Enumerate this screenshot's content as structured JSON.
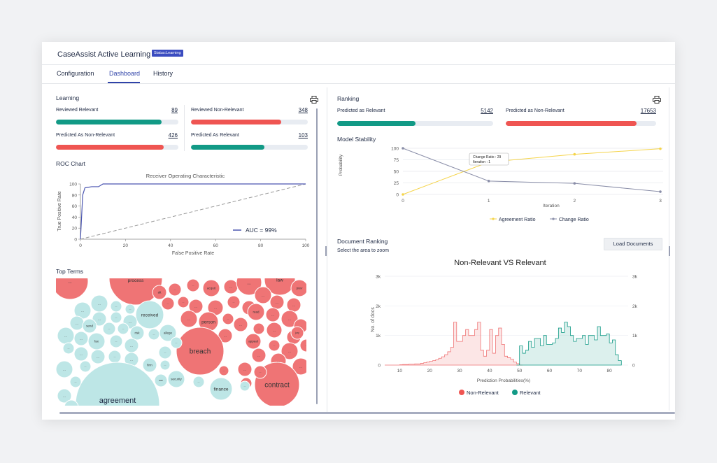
{
  "app": {
    "title": "CaseAssist Active Learning",
    "status_badge": "Status:Learning"
  },
  "tabs": [
    {
      "label": "Configuration"
    },
    {
      "label": "Dashboard"
    },
    {
      "label": "History"
    }
  ],
  "learning": {
    "title": "Learning",
    "reviewed_relevant": {
      "label": "Reviewed Relevant",
      "value": "89",
      "fill": 0.86
    },
    "reviewed_non_relevant": {
      "label": "Reviewed Non-Relevant",
      "value": "348",
      "fill": 0.77
    },
    "predicted_non_relevant": {
      "label": "Predicted As Non-Relevant",
      "value": "426",
      "fill": 0.88
    },
    "predicted_relevant": {
      "label": "Predicted As Relevant",
      "value": "103",
      "fill": 0.63
    }
  },
  "roc": {
    "section_title": "ROC Chart",
    "chart_title": "Receiver Operating Characteristic",
    "xlabel": "False Positive Rate",
    "ylabel": "True Positive Rate",
    "xticks": [
      "0",
      "20",
      "40",
      "60",
      "80",
      "100"
    ],
    "yticks": [
      "0",
      "20",
      "40",
      "60",
      "80",
      "100"
    ],
    "legend": "AUC = 99%"
  },
  "top_terms": {
    "title": "Top Terms",
    "labels": {
      "process": "process",
      "law": "law",
      "acquit": "acquit",
      "prev": "prev",
      "alt": "alt",
      "read": "read",
      "received": "received",
      "person": "person",
      "allege": "allege",
      "send": "send",
      "fax": "fax",
      "risk": "risk",
      "breach": "breach",
      "appeal": "appeal",
      "jury": "jury",
      "firm": "firm",
      "security": "security",
      "sue": "sue",
      "finance": "finance",
      "contract": "contract",
      "agreement": "agreement",
      "ellipsis": "..."
    }
  },
  "ranking": {
    "title": "Ranking",
    "predicted_relevant": {
      "label": "Predicted as Relevant",
      "value": "5142",
      "fill": 0.5
    },
    "predicted_non_relevant": {
      "label": "Predicted as Non-Relevant",
      "value": "17653",
      "fill": 0.87
    }
  },
  "stability": {
    "title": "Model Stability",
    "xlabel": "Iteration",
    "ylabel": "Probability",
    "xticks": [
      "0",
      "1",
      "2",
      "3"
    ],
    "yticks": [
      "0",
      "25",
      "50",
      "75",
      "100"
    ],
    "legend_agreement": "Agreement Ratio",
    "legend_change": "Change Ratio",
    "tooltip_line1": "Change Ratio : 29",
    "tooltip_line2": "Iteration : 1"
  },
  "doc_ranking": {
    "title": "Document Ranking",
    "subtitle": "Select the area to zoom",
    "load_button": "Load Documents",
    "chart_title": "Non-Relevant VS Relevant",
    "ylabel": "No. of docs",
    "xlabel": "Prediction Probabilities(%)",
    "yticks": [
      "0",
      "1k",
      "2k",
      "3k"
    ],
    "xticks": [
      "10",
      "20",
      "30",
      "40",
      "50",
      "60",
      "70",
      "80"
    ],
    "legend_non_relevant": "Non-Relevant",
    "legend_relevant": "Relevant"
  },
  "colors": {
    "green": "#129a86",
    "red": "#ef5552",
    "accent": "#2f43a8",
    "agreement": "#f5d44a",
    "change": "#8a8ea8",
    "bubble_red": "#ef7475",
    "bubble_teal": "#bde6e6"
  },
  "chart_data": [
    {
      "type": "line",
      "title": "Receiver Operating Characteristic",
      "xlabel": "False Positive Rate",
      "ylabel": "True Positive Rate",
      "xlim": [
        0,
        100
      ],
      "ylim": [
        0,
        100
      ],
      "series": [
        {
          "name": "AUC = 99%",
          "x": [
            0,
            1,
            2,
            5,
            8,
            10,
            100
          ],
          "y": [
            0,
            80,
            93,
            95,
            95,
            100,
            100
          ]
        },
        {
          "x": [
            0,
            100
          ],
          "y": [
            0,
            100
          ]
        }
      ]
    },
    {
      "type": "line",
      "title": "",
      "xlabel": "Iteration",
      "ylabel": "Probability",
      "x": [
        0,
        1,
        2,
        3
      ],
      "ylim": [
        0,
        100
      ],
      "series": [
        {
          "name": "Agreement Ratio",
          "values": [
            0,
            70,
            87,
            99
          ]
        },
        {
          "name": "Change Ratio",
          "values": [
            100,
            29,
            24,
            6
          ]
        }
      ]
    },
    {
      "type": "area",
      "title": "Non-Relevant VS Relevant",
      "xlabel": "Prediction Probabilities(%)",
      "ylabel": "No. of docs",
      "xlim": [
        5,
        83
      ],
      "ylim": [
        0,
        3000
      ],
      "series": [
        {
          "name": "Non-Relevant",
          "x": [
            5,
            6,
            7,
            8,
            9,
            10,
            11,
            12,
            13,
            14,
            15,
            16,
            17,
            18,
            19,
            20,
            21,
            22,
            23,
            24,
            25,
            26,
            27,
            28,
            29,
            30,
            31,
            32,
            33,
            34,
            35,
            36,
            37,
            38,
            39,
            40,
            41,
            42,
            43,
            44,
            45,
            46,
            47,
            48,
            49,
            50
          ],
          "values": [
            0,
            0,
            0,
            0,
            0,
            10,
            20,
            20,
            30,
            30,
            40,
            40,
            60,
            80,
            100,
            130,
            150,
            180,
            230,
            280,
            350,
            450,
            600,
            1450,
            800,
            800,
            1000,
            1200,
            1000,
            1000,
            1200,
            1450,
            500,
            300,
            500,
            1200,
            400,
            1000,
            1250,
            700,
            300,
            250,
            200,
            100,
            50,
            0
          ]
        },
        {
          "name": "Relevant",
          "x": [
            49,
            50,
            51,
            52,
            53,
            54,
            55,
            56,
            57,
            58,
            59,
            60,
            61,
            62,
            63,
            64,
            65,
            66,
            67,
            68,
            69,
            70,
            71,
            72,
            73,
            74,
            75,
            76,
            77,
            78,
            79,
            80,
            81,
            82,
            83
          ],
          "values": [
            0,
            650,
            400,
            500,
            800,
            600,
            900,
            900,
            650,
            1000,
            700,
            700,
            750,
            900,
            1250,
            1100,
            1450,
            1300,
            1000,
            800,
            900,
            900,
            1000,
            700,
            1000,
            1000,
            850,
            1300,
            1000,
            1000,
            1050,
            750,
            850,
            350,
            150
          ]
        }
      ]
    }
  ]
}
